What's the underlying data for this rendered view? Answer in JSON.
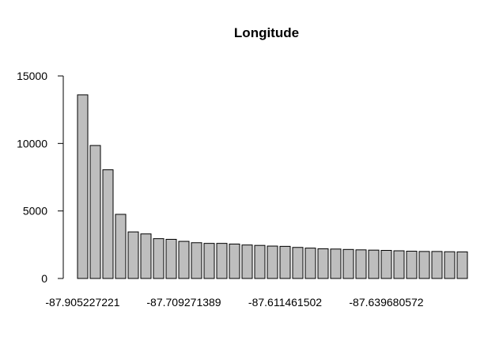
{
  "chart_data": {
    "type": "bar",
    "title": "Longitude",
    "xlabel": "",
    "ylabel": "",
    "ylim": [
      0,
      15000
    ],
    "yticks": [
      0,
      5000,
      10000,
      15000
    ],
    "ytick_labels": [
      "0",
      "5000",
      "10000",
      "15000"
    ],
    "xtick_labels": [
      {
        "index": 0,
        "label": "-87.905227221"
      },
      {
        "index": 8,
        "label": "-87.709271389"
      },
      {
        "index": 16,
        "label": "-87.611461502"
      },
      {
        "index": 24,
        "label": "-87.639680572"
      }
    ],
    "values": [
      13600,
      9850,
      8050,
      4750,
      3450,
      3300,
      2950,
      2900,
      2750,
      2650,
      2600,
      2600,
      2550,
      2480,
      2450,
      2400,
      2380,
      2300,
      2250,
      2200,
      2180,
      2150,
      2120,
      2100,
      2080,
      2050,
      2020,
      2000,
      2000,
      1980,
      1970
    ],
    "grid": false,
    "legend": "none"
  }
}
